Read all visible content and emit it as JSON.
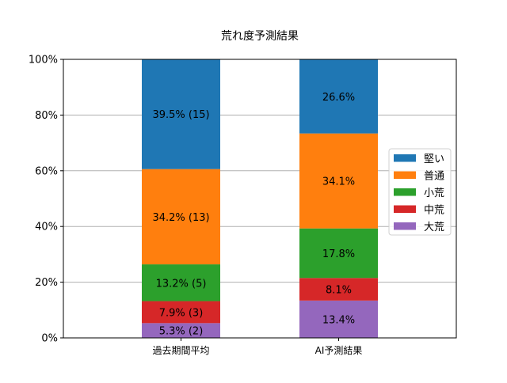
{
  "chart_data": {
    "type": "bar",
    "stacked": true,
    "title": "荒れ度予測結果",
    "xlabel": "",
    "ylabel": "",
    "ylim": [
      0,
      100
    ],
    "y_tick_labels": [
      "0%",
      "20%",
      "40%",
      "60%",
      "80%",
      "100%"
    ],
    "y_ticks": [
      0,
      20,
      40,
      60,
      80,
      100
    ],
    "grid": "y-axis on",
    "legend_position": "center-right",
    "categories": [
      "過去期間平均",
      "AI予測結果"
    ],
    "series": [
      {
        "name": "大荒",
        "color": "#9467bd",
        "values": [
          5.3,
          13.4
        ],
        "labels": [
          "5.3% (2)",
          "13.4%"
        ]
      },
      {
        "name": "中荒",
        "color": "#d62728",
        "values": [
          7.9,
          8.1
        ],
        "labels": [
          "7.9% (3)",
          "8.1%"
        ]
      },
      {
        "name": "小荒",
        "color": "#2ca02c",
        "values": [
          13.2,
          17.8
        ],
        "labels": [
          "13.2% (5)",
          "17.8%"
        ]
      },
      {
        "name": "普通",
        "color": "#ff7f0e",
        "values": [
          34.2,
          34.1
        ],
        "labels": [
          "34.2% (13)",
          "34.1%"
        ]
      },
      {
        "name": "堅い",
        "color": "#1f77b4",
        "values": [
          39.5,
          26.6
        ],
        "labels": [
          "39.5% (15)",
          "26.6%"
        ]
      }
    ],
    "legend_order": [
      "堅い",
      "普通",
      "小荒",
      "中荒",
      "大荒"
    ]
  }
}
